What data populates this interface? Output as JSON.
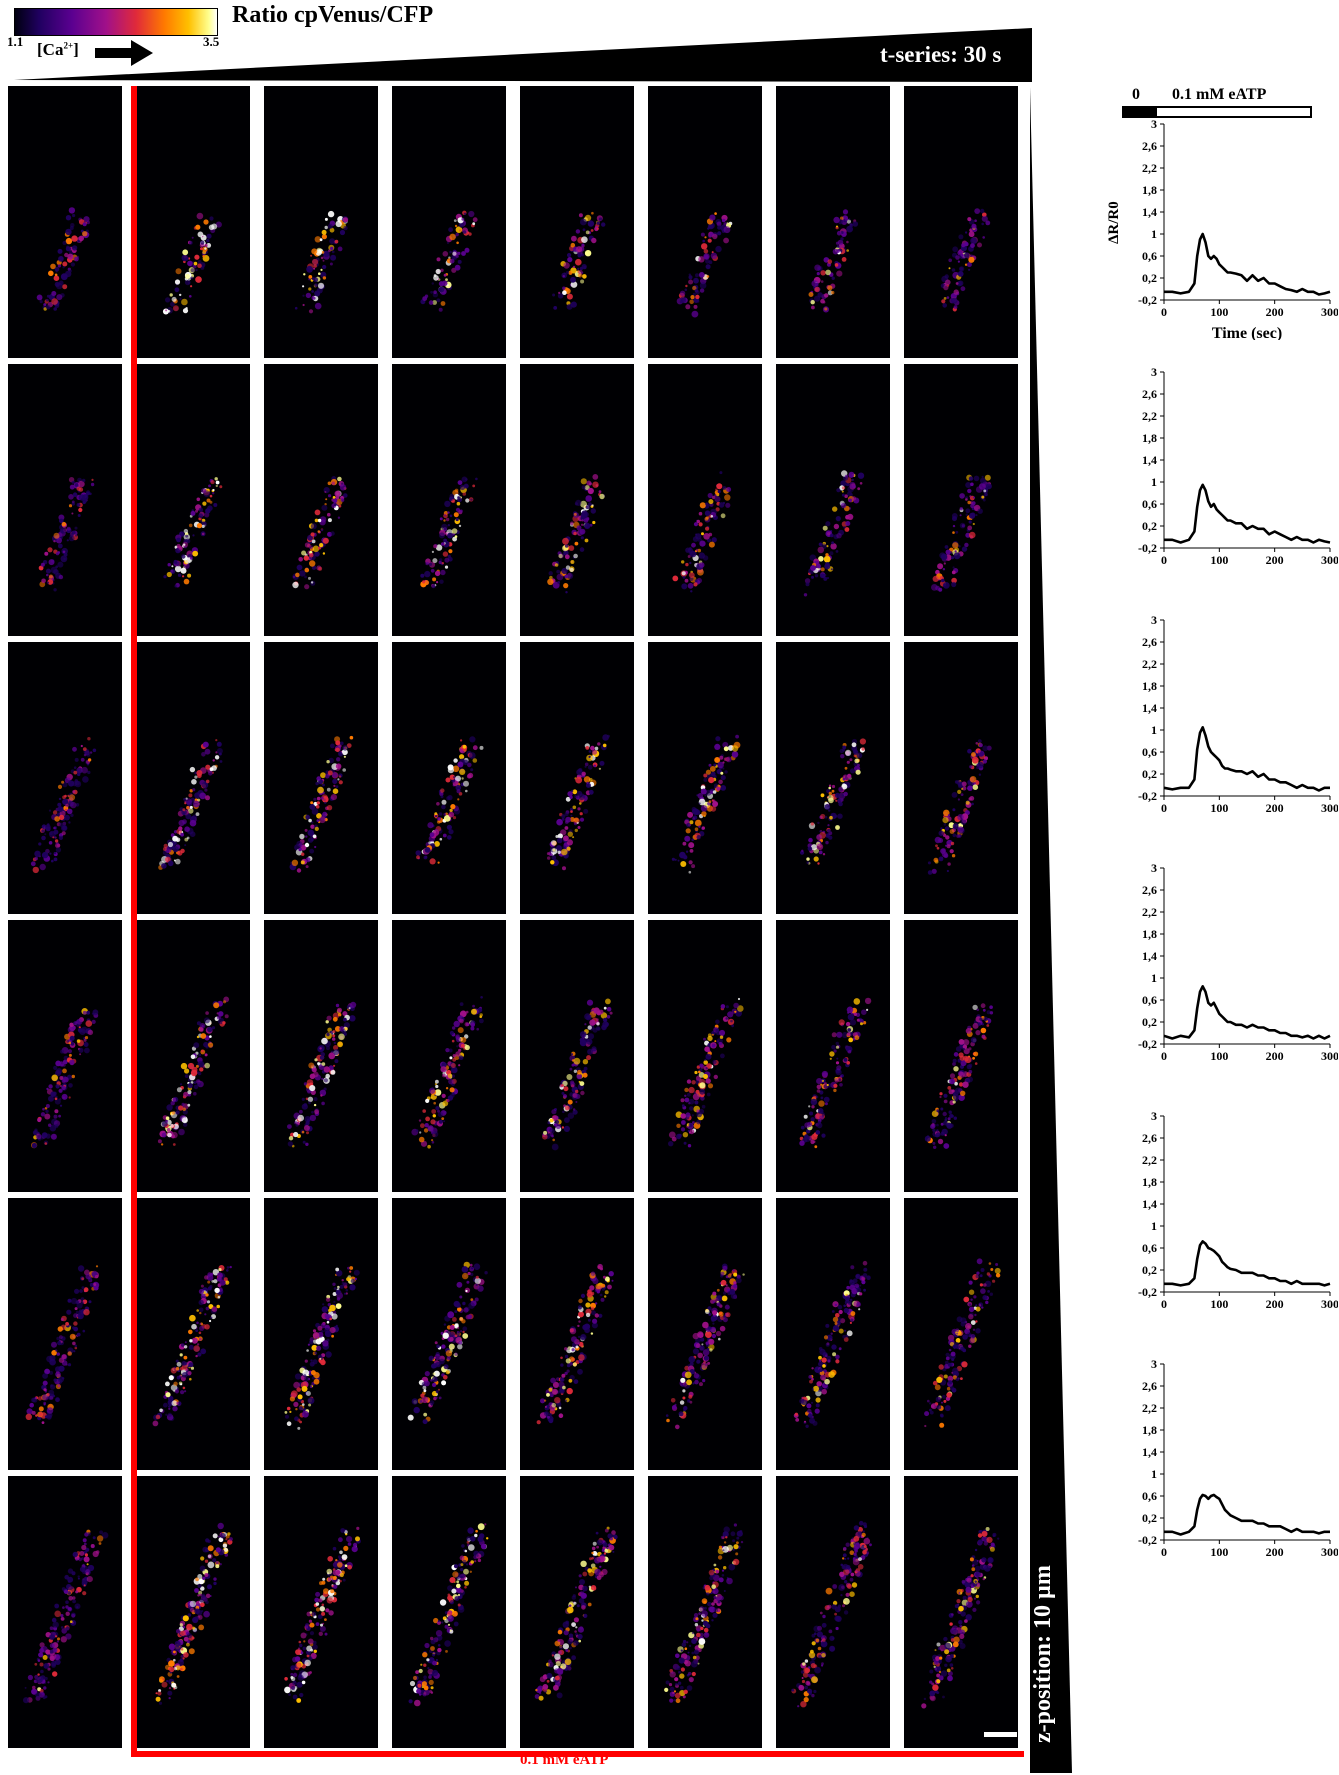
{
  "colorbar": {
    "title": "Ratio cpVenus/CFP",
    "min_label": "1.1",
    "max_label": "3.5",
    "ion_label": "[Ca",
    "ion_superscript": "2+",
    "ion_label_end": "]",
    "colors": [
      "#000010",
      "#200060",
      "#5a0090",
      "#a0108a",
      "#e02a3a",
      "#ff7a00",
      "#ffc000",
      "#ffff90",
      "#ffffff"
    ]
  },
  "t_series_label": "t-series: 30 s",
  "z_position_label": "z-position: 10 µm",
  "treatment_label": "0.1 mM eATP",
  "stimulus_bar": {
    "before_label": "0",
    "after_label": "0.1 mM eATP"
  },
  "grid": {
    "rows": 6,
    "columns": 8,
    "stimulus_column_index": 1
  },
  "chart_data": [
    {
      "type": "line",
      "ylabel": "ΔR/R0",
      "xlabel": "Time (sec)",
      "x": [
        0,
        15,
        30,
        45,
        55,
        60,
        65,
        70,
        75,
        80,
        85,
        90,
        95,
        100,
        105,
        110,
        115,
        120,
        130,
        140,
        150,
        160,
        170,
        180,
        190,
        200,
        210,
        220,
        230,
        240,
        250,
        260,
        270,
        280,
        290,
        300
      ],
      "y": [
        -0.05,
        -0.05,
        -0.08,
        -0.05,
        0.1,
        0.6,
        0.9,
        1.0,
        0.85,
        0.6,
        0.55,
        0.6,
        0.55,
        0.45,
        0.4,
        0.35,
        0.3,
        0.3,
        0.28,
        0.25,
        0.15,
        0.25,
        0.15,
        0.2,
        0.1,
        0.1,
        0.05,
        0.0,
        -0.02,
        -0.05,
        0.0,
        -0.05,
        -0.05,
        -0.1,
        -0.08,
        -0.05
      ],
      "xticks": [
        0,
        100,
        200,
        300
      ],
      "yticks": [
        "-0,2",
        "0,2",
        "0,6",
        "1",
        "1,4",
        "1,8",
        "2,2",
        "2,6",
        "3"
      ],
      "ylim": [
        -0.2,
        3
      ],
      "xlim": [
        0,
        300
      ]
    },
    {
      "type": "line",
      "ylabel": "",
      "xlabel": "",
      "x": [
        0,
        15,
        30,
        45,
        55,
        60,
        65,
        70,
        75,
        80,
        85,
        90,
        95,
        100,
        105,
        110,
        115,
        120,
        130,
        140,
        150,
        160,
        170,
        180,
        190,
        200,
        210,
        220,
        230,
        240,
        250,
        260,
        270,
        280,
        290,
        300
      ],
      "y": [
        -0.05,
        -0.05,
        -0.1,
        -0.05,
        0.1,
        0.55,
        0.85,
        0.95,
        0.85,
        0.65,
        0.55,
        0.6,
        0.5,
        0.45,
        0.4,
        0.35,
        0.3,
        0.3,
        0.25,
        0.25,
        0.15,
        0.2,
        0.15,
        0.15,
        0.05,
        0.1,
        0.05,
        0.0,
        -0.05,
        0.0,
        -0.05,
        -0.05,
        -0.1,
        -0.05,
        -0.08,
        -0.1
      ],
      "xticks": [
        0,
        100,
        200,
        300
      ],
      "yticks": [
        "-0,2",
        "0,2",
        "0,6",
        "1",
        "1,4",
        "1,8",
        "2,2",
        "2,6",
        "3"
      ],
      "ylim": [
        -0.2,
        3
      ],
      "xlim": [
        0,
        300
      ]
    },
    {
      "type": "line",
      "ylabel": "",
      "xlabel": "",
      "x": [
        0,
        15,
        30,
        45,
        55,
        60,
        65,
        70,
        75,
        80,
        85,
        90,
        95,
        100,
        105,
        110,
        115,
        120,
        130,
        140,
        150,
        160,
        170,
        180,
        190,
        200,
        210,
        220,
        230,
        240,
        250,
        260,
        270,
        280,
        290,
        300
      ],
      "y": [
        -0.05,
        -0.08,
        -0.05,
        -0.05,
        0.1,
        0.65,
        0.95,
        1.05,
        0.9,
        0.7,
        0.6,
        0.55,
        0.5,
        0.45,
        0.35,
        0.3,
        0.3,
        0.28,
        0.25,
        0.25,
        0.2,
        0.25,
        0.15,
        0.2,
        0.1,
        0.1,
        0.05,
        0.05,
        0.0,
        -0.05,
        0.0,
        -0.05,
        -0.05,
        -0.1,
        -0.05,
        -0.05
      ],
      "xticks": [
        0,
        100,
        200,
        300
      ],
      "yticks": [
        "-0,2",
        "0,2",
        "0,6",
        "1",
        "1,4",
        "1,8",
        "2,2",
        "2,6",
        "3"
      ],
      "ylim": [
        -0.2,
        3
      ],
      "xlim": [
        0,
        300
      ]
    },
    {
      "type": "line",
      "ylabel": "",
      "xlabel": "",
      "x": [
        0,
        15,
        30,
        45,
        55,
        60,
        65,
        70,
        75,
        80,
        85,
        90,
        95,
        100,
        105,
        110,
        115,
        120,
        130,
        140,
        150,
        160,
        170,
        180,
        190,
        200,
        210,
        220,
        230,
        240,
        250,
        260,
        270,
        280,
        290,
        300
      ],
      "y": [
        -0.05,
        -0.1,
        -0.05,
        -0.08,
        0.05,
        0.45,
        0.75,
        0.85,
        0.75,
        0.55,
        0.5,
        0.55,
        0.45,
        0.35,
        0.3,
        0.25,
        0.2,
        0.2,
        0.15,
        0.15,
        0.1,
        0.15,
        0.1,
        0.1,
        0.05,
        0.05,
        0.0,
        0.0,
        -0.05,
        -0.05,
        -0.08,
        -0.05,
        -0.1,
        -0.05,
        -0.1,
        -0.05
      ],
      "xticks": [
        0,
        100,
        200,
        300
      ],
      "yticks": [
        "-0,2",
        "0,2",
        "0,6",
        "1",
        "1,4",
        "1,8",
        "2,2",
        "2,6",
        "3"
      ],
      "ylim": [
        -0.2,
        3
      ],
      "xlim": [
        0,
        300
      ]
    },
    {
      "type": "line",
      "ylabel": "",
      "xlabel": "",
      "x": [
        0,
        15,
        30,
        45,
        55,
        60,
        65,
        70,
        75,
        80,
        85,
        90,
        95,
        100,
        105,
        110,
        115,
        120,
        130,
        140,
        150,
        160,
        170,
        180,
        190,
        200,
        210,
        220,
        230,
        240,
        250,
        260,
        270,
        280,
        290,
        300
      ],
      "y": [
        -0.05,
        -0.05,
        -0.08,
        -0.05,
        0.05,
        0.4,
        0.65,
        0.72,
        0.68,
        0.6,
        0.58,
        0.55,
        0.5,
        0.45,
        0.35,
        0.3,
        0.25,
        0.22,
        0.2,
        0.15,
        0.15,
        0.15,
        0.1,
        0.1,
        0.05,
        0.05,
        0.0,
        0.0,
        -0.05,
        0.0,
        -0.05,
        -0.05,
        -0.05,
        -0.05,
        -0.08,
        -0.05
      ],
      "xticks": [
        0,
        100,
        200,
        300
      ],
      "yticks": [
        "-0,2",
        "0,2",
        "0,6",
        "1",
        "1,4",
        "1,8",
        "2,2",
        "2,6",
        "3"
      ],
      "ylim": [
        -0.2,
        3
      ],
      "xlim": [
        0,
        300
      ]
    },
    {
      "type": "line",
      "ylabel": "",
      "xlabel": "",
      "x": [
        0,
        15,
        30,
        45,
        55,
        60,
        65,
        70,
        75,
        80,
        85,
        90,
        95,
        100,
        105,
        110,
        115,
        120,
        130,
        140,
        150,
        160,
        170,
        180,
        190,
        200,
        210,
        220,
        230,
        240,
        250,
        260,
        270,
        280,
        290,
        300
      ],
      "y": [
        -0.05,
        -0.05,
        -0.1,
        -0.05,
        0.05,
        0.35,
        0.55,
        0.62,
        0.6,
        0.55,
        0.6,
        0.62,
        0.58,
        0.55,
        0.45,
        0.35,
        0.3,
        0.25,
        0.2,
        0.15,
        0.15,
        0.15,
        0.1,
        0.1,
        0.05,
        0.05,
        0.05,
        0.0,
        -0.05,
        0.0,
        -0.05,
        -0.05,
        -0.05,
        -0.08,
        -0.05,
        -0.05
      ],
      "xticks": [
        0,
        100,
        200,
        300
      ],
      "yticks": [
        "-0,2",
        "0,2",
        "0,6",
        "1",
        "1,4",
        "1,8",
        "2,2",
        "2,6",
        "3"
      ],
      "ylim": [
        -0.2,
        3
      ],
      "xlim": [
        0,
        300
      ]
    }
  ]
}
